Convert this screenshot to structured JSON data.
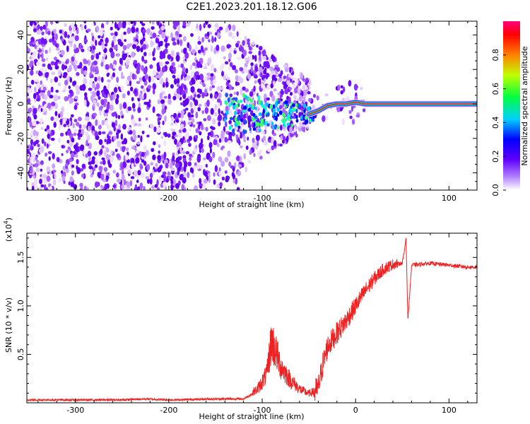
{
  "title": "C2E1.2023.201.18.12.G06",
  "chart_data": [
    {
      "type": "heatmap",
      "xlabel": "Height of straight line (km)",
      "ylabel": "Frequency (Hz)",
      "xlim": [
        -352,
        130
      ],
      "ylim": [
        -50,
        48
      ],
      "xticks": [
        -300,
        -200,
        -100,
        0,
        100
      ],
      "yticks": [
        -40,
        -20,
        0,
        20,
        40
      ],
      "colorbar": {
        "label": "Normalized spectral amplitude",
        "range": [
          0,
          1
        ],
        "ticks": [
          "0.0",
          "0.2",
          "0.4",
          "0.6",
          "0.8"
        ],
        "colors": [
          "#ffffff",
          "#8000ff",
          "#0000ff",
          "#00ffff",
          "#00ff00",
          "#ffff00",
          "#ff0000",
          "#ff0080"
        ]
      },
      "ridge": {
        "x": [
          -50,
          -40,
          -30,
          -20,
          -10,
          0,
          10,
          30,
          60,
          90,
          130
        ],
        "y": [
          -6,
          -4,
          -1,
          0,
          0,
          1,
          0,
          0,
          0,
          0,
          0
        ]
      },
      "grid": false
    },
    {
      "type": "line",
      "xlabel": "Height of straight line (km)",
      "ylabel": "SNR (10 * v/v)",
      "y_multiplier": "(x10",
      "y_multiplier_exp": "4",
      "y_multiplier_close": ")",
      "xlim": [
        -352,
        130
      ],
      "ylim": [
        0,
        1.75
      ],
      "xticks": [
        -300,
        -200,
        -100,
        0,
        100
      ],
      "yticks": [
        "0.5",
        "1.0",
        "1.5"
      ],
      "series": [
        {
          "color": "#ee2222",
          "x": [
            -352,
            -300,
            -250,
            -225,
            -200,
            -150,
            -120,
            -105,
            -95,
            -90,
            -80,
            -70,
            -60,
            -50,
            -45,
            -40,
            -35,
            -30,
            -20,
            -10,
            0,
            10,
            20,
            30,
            40,
            50,
            52,
            54,
            56,
            60,
            70,
            80,
            90,
            100,
            110,
            120,
            130
          ],
          "y": [
            0.03,
            0.03,
            0.03,
            0.04,
            0.03,
            0.04,
            0.04,
            0.12,
            0.25,
            0.55,
            0.32,
            0.2,
            0.12,
            0.08,
            0.1,
            0.15,
            0.4,
            0.58,
            0.72,
            0.85,
            1.0,
            1.15,
            1.28,
            1.38,
            1.43,
            1.44,
            1.55,
            1.7,
            0.85,
            1.42,
            1.43,
            1.44,
            1.43,
            1.42,
            1.41,
            1.4,
            1.4
          ]
        }
      ],
      "grid": false
    }
  ]
}
